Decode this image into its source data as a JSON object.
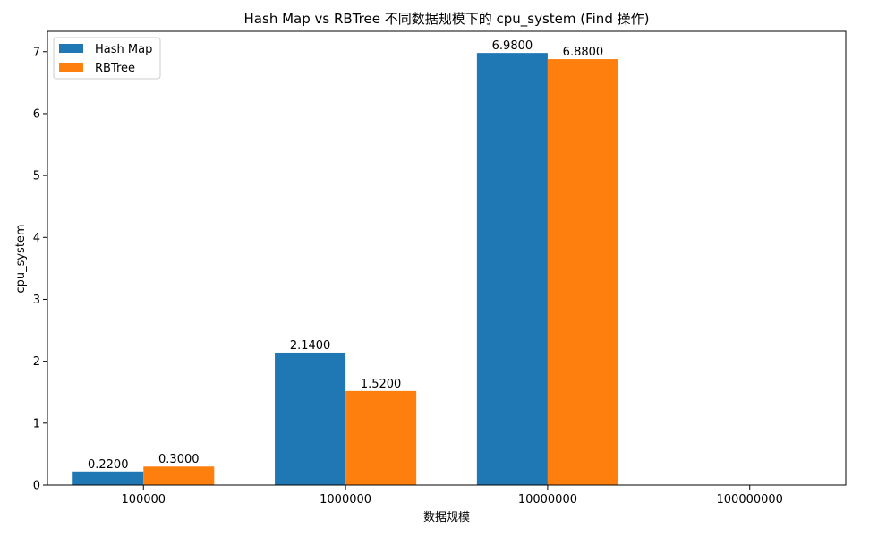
{
  "chart_data": {
    "type": "bar",
    "title": "Hash Map vs RBTree 不同数据规模下的 cpu_system (Find 操作)",
    "xlabel": "数据规模",
    "ylabel": "cpu_system",
    "x_ticks": [
      "100000",
      "1000000",
      "10000000",
      "100000000"
    ],
    "categories": [
      "100000",
      "1000000",
      "10000000"
    ],
    "series": [
      {
        "name": "Hash Map",
        "color": "#1f77b4",
        "values": [
          0.22,
          2.14,
          6.98
        ],
        "labels": [
          "0.2200",
          "2.1400",
          "6.9800"
        ]
      },
      {
        "name": "RBTree",
        "color": "#ff7f0e",
        "values": [
          0.3,
          1.52,
          6.88
        ],
        "labels": [
          "0.3000",
          "1.5200",
          "6.8800"
        ]
      }
    ],
    "ylim": [
      0,
      7.329
    ],
    "y_ticks": [
      0,
      1,
      2,
      3,
      4,
      5,
      6,
      7
    ],
    "grid": false,
    "legend": "top-left"
  }
}
